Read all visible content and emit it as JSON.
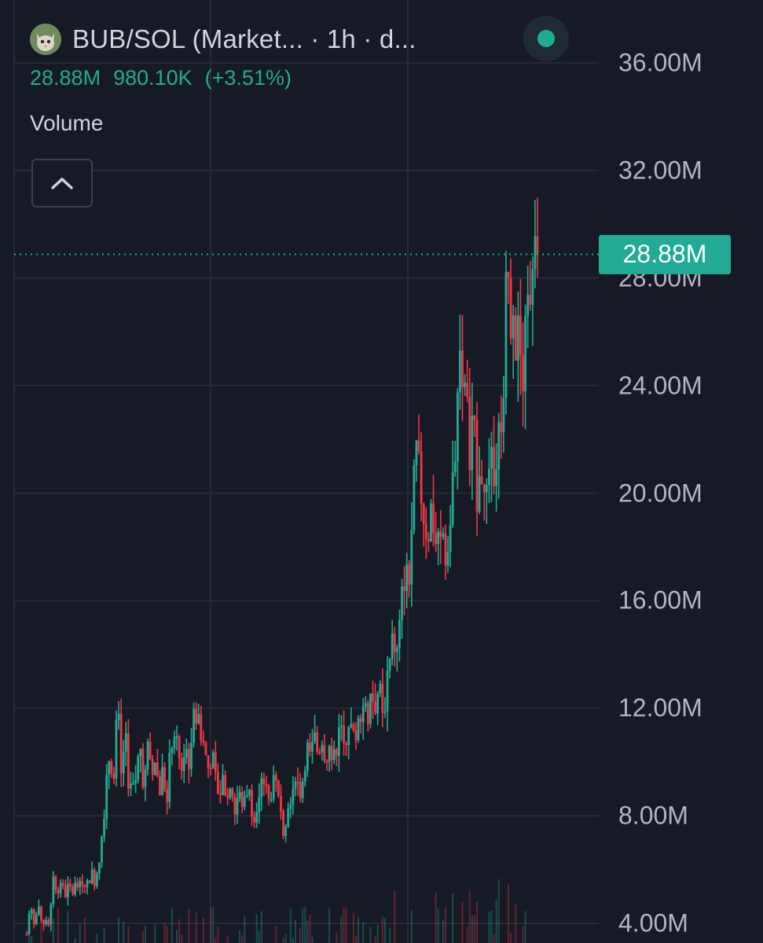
{
  "header": {
    "title": "BUB/SOL (Market... · 1h · d...",
    "ohlc": {
      "close": "28.88M",
      "change": "980.10K",
      "change_pct": "(+3.51%)"
    },
    "volume_label": "Volume",
    "status_color": "#22ab94"
  },
  "collapse_button": {
    "icon": "chevron-up-icon"
  },
  "price_tag": {
    "label": "28.88M",
    "value": 28.88,
    "color": "#22ab94"
  },
  "colors": {
    "up": "#22ab94",
    "down": "#f23645",
    "background": "#161a25",
    "grid": "#262a36"
  },
  "chart_data": {
    "type": "candlestick",
    "title": "BUB/SOL (Market... · 1h · d...",
    "interval": "1h",
    "ylabel": "",
    "ylim": [
      3.5,
      38.0
    ],
    "y_unit": "M",
    "y_ticks": [
      {
        "value": 36,
        "label": "36.00M"
      },
      {
        "value": 32,
        "label": "32.00M"
      },
      {
        "value": 28,
        "label": "28.00M"
      },
      {
        "value": 24,
        "label": "24.00M"
      },
      {
        "value": 20,
        "label": "20.00M"
      },
      {
        "value": 16,
        "label": "16.00M"
      },
      {
        "value": 12,
        "label": "12.00M"
      },
      {
        "value": 8,
        "label": "8.00M"
      },
      {
        "value": 4,
        "label": "4.00M"
      }
    ],
    "last_price": 28.88,
    "grid": true,
    "close_path": [
      3.6,
      4.8,
      3.9,
      4.6,
      3.8,
      4.3,
      3.7,
      5.9,
      5.2,
      5.6,
      5.0,
      5.4,
      5.1,
      5.5,
      5.3,
      5.7,
      5.4,
      5.9,
      5.6,
      6.2,
      7.5,
      9.0,
      10.5,
      9.2,
      12.2,
      9.5,
      11.0,
      9.2,
      8.8,
      9.5,
      10.8,
      9.0,
      10.5,
      9.3,
      10.2,
      8.8,
      9.8,
      8.5,
      10.5,
      11.2,
      10.2,
      9.8,
      10.6,
      10.0,
      11.5,
      12.0,
      11.2,
      10.5,
      9.8,
      10.3,
      9.2,
      8.8,
      9.5,
      8.6,
      9.3,
      8.1,
      8.9,
      8.2,
      9.1,
      8.7,
      8.0,
      8.6,
      9.6,
      9.1,
      8.5,
      9.2,
      8.9,
      8.1,
      7.5,
      8.4,
      8.9,
      9.6,
      8.7,
      9.4,
      10.6,
      10.0,
      10.9,
      10.3,
      11.0,
      10.2,
      10.6,
      9.9,
      10.7,
      11.3,
      10.7,
      11.6,
      11.1,
      10.5,
      11.9,
      12.3,
      11.6,
      12.6,
      12.1,
      12.8,
      11.9,
      12.5,
      13.6,
      14.8,
      13.9,
      15.8,
      17.2,
      16.4,
      19.5,
      21.4,
      20.3,
      19.2,
      18.4,
      19.6,
      18.2,
      17.8,
      18.5,
      17.5,
      18.9,
      21.6,
      23.6,
      25.0,
      24.0,
      21.2,
      22.6,
      20.2,
      21.6,
      19.5,
      20.4,
      20.9,
      21.4,
      22.4,
      24.1,
      28.9,
      26.8,
      25.2,
      26.0,
      24.4,
      27.1,
      26.2,
      28.2,
      28.88
    ]
  }
}
